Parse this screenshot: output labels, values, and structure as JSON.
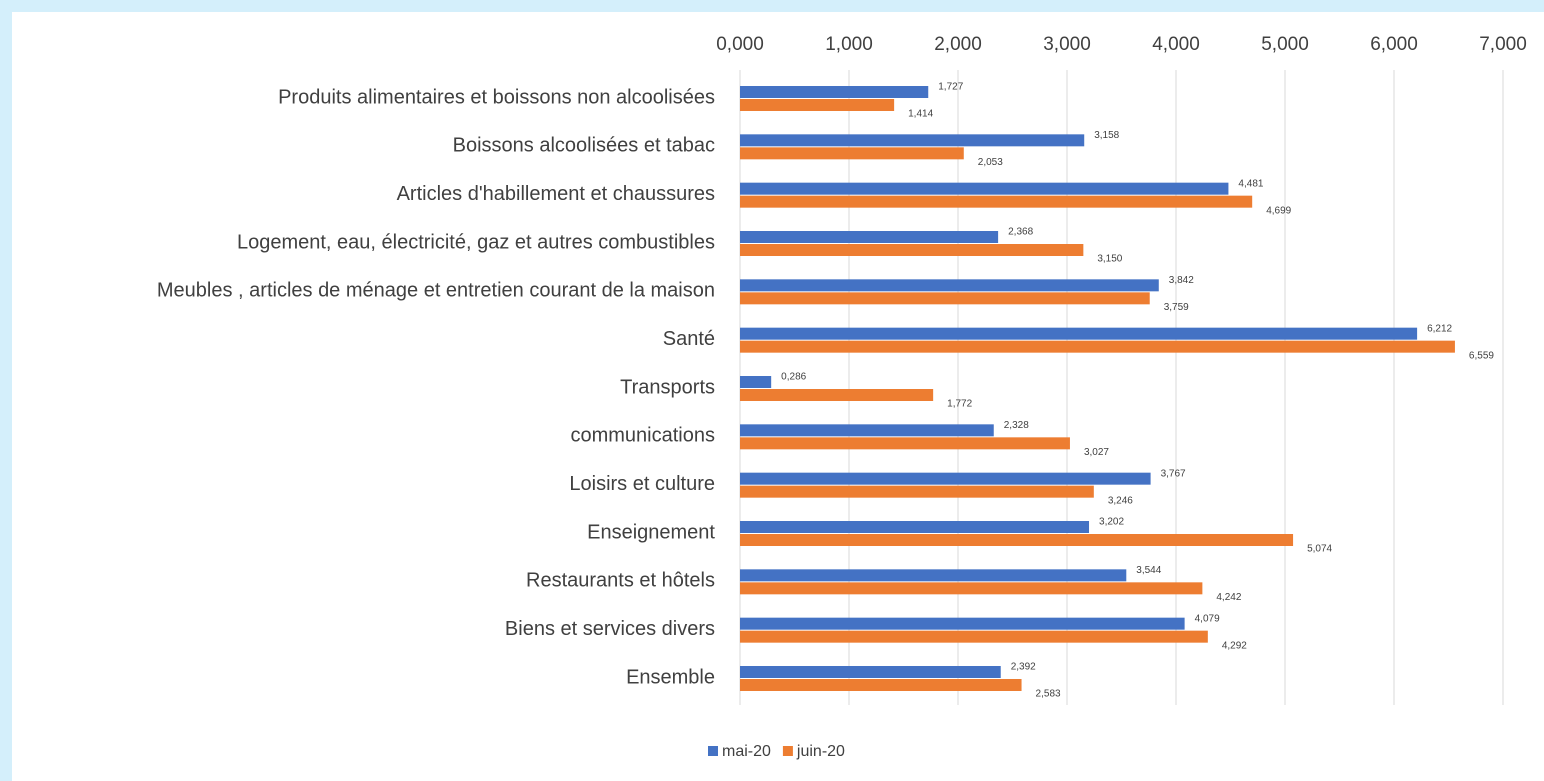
{
  "chart_data": {
    "type": "hbar",
    "categories": [
      "Produits alimentaires et boissons non alcoolisées",
      "Boissons alcoolisées et tabac",
      "Articles d'habillement et  chaussures",
      "Logement, eau, électricité, gaz et autres combustibles",
      "Meubles , articles de ménage et entretien courant de la maison",
      "Santé",
      "Transports",
      "communications",
      "Loisirs  et culture",
      "Enseignement",
      "Restaurants et hôtels",
      "Biens et services divers",
      "Ensemble"
    ],
    "series": [
      {
        "name": "mai-20",
        "color": "#4472c4",
        "values": [
          1.727,
          3.158,
          4.481,
          2.368,
          3.842,
          6.212,
          0.286,
          2.328,
          3.767,
          3.202,
          3.544,
          4.079,
          2.392
        ],
        "value_labels": [
          "1,727",
          "3,158",
          "4,481",
          "2,368",
          "3,842",
          "6,212",
          "0,286",
          "2,328",
          "3,767",
          "3,202",
          "3,544",
          "4,079",
          "2,392"
        ]
      },
      {
        "name": "juin-20",
        "color": "#ed7d31",
        "values": [
          1.414,
          2.053,
          4.699,
          3.15,
          3.759,
          6.559,
          1.772,
          3.027,
          3.246,
          5.074,
          4.242,
          4.292,
          2.583
        ],
        "value_labels": [
          "1,414",
          "2,053",
          "4,699",
          "3,150",
          "3,759",
          "6,559",
          "1,772",
          "3,027",
          "3,246",
          "5,074",
          "4,242",
          "4,292",
          "2,583"
        ]
      }
    ],
    "xlim": [
      0,
      7
    ],
    "xticks": [
      {
        "value": 0,
        "label": "0,000"
      },
      {
        "value": 1,
        "label": "1,000"
      },
      {
        "value": 2,
        "label": "2,000"
      },
      {
        "value": 3,
        "label": "3,000"
      },
      {
        "value": 4,
        "label": "4,000"
      },
      {
        "value": 5,
        "label": "5,000"
      },
      {
        "value": 6,
        "label": "6,000"
      },
      {
        "value": 7,
        "label": "7,000"
      }
    ],
    "grid": true,
    "legend": "bottom"
  }
}
